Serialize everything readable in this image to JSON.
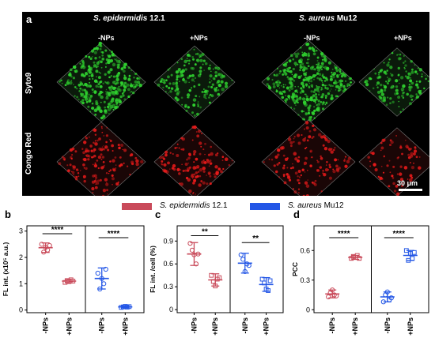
{
  "panel_a": {
    "label": "a",
    "species": [
      {
        "name_italic": "S. epidermidis",
        "strain": "12.1"
      },
      {
        "name_italic": "S. aureus",
        "strain": "Mu12"
      }
    ],
    "conditions": [
      "-NPs",
      "+NPs",
      "-NPs",
      "+NPs"
    ],
    "stains": [
      "Syto9",
      "Congo Red"
    ],
    "scale_bar": "30 μm",
    "colors": {
      "syto9": "#2fd12f",
      "congo": "#e61a1a"
    }
  },
  "legend": {
    "items": [
      {
        "name_italic": "S. epidermidis",
        "strain": "12.1",
        "color": "#c94a5a"
      },
      {
        "name_italic": "S. aureus",
        "strain": "Mu12",
        "color": "#2457e6"
      }
    ]
  },
  "chart_data": [
    {
      "panel": "b",
      "type": "scatter",
      "ylabel": "FL int. (x10⁵ a.u.)",
      "ylim": [
        -0.1,
        3.2
      ],
      "yticks": [
        "0",
        "1",
        "2",
        "3"
      ],
      "yticks_values": [
        0,
        1,
        2,
        3
      ],
      "categories": [
        "-NPs",
        "+NPs",
        "-NPs",
        "+NPs"
      ],
      "groups": [
        {
          "color": "#c94a5a",
          "marker": "circle",
          "mean": 2.37,
          "sd": 0.18,
          "points": [
            2.5,
            2.2,
            2.38,
            2.28,
            2.45
          ]
        },
        {
          "color": "#c94a5a",
          "marker": "square",
          "mean": 1.1,
          "sd": 0.07,
          "points": [
            1.05,
            1.12,
            1.08,
            1.15,
            1.1
          ]
        },
        {
          "color": "#2457e6",
          "marker": "circle",
          "mean": 1.2,
          "sd": 0.4,
          "points": [
            1.4,
            0.8,
            1.2,
            1.0,
            1.55
          ]
        },
        {
          "color": "#2457e6",
          "marker": "square",
          "mean": 0.12,
          "sd": 0.03,
          "points": [
            0.1,
            0.12,
            0.14,
            0.11,
            0.13
          ]
        }
      ],
      "significance": [
        {
          "between": [
            0,
            1
          ],
          "label": "****",
          "y": 2.9
        },
        {
          "between": [
            2,
            3
          ],
          "label": "****",
          "y": 2.75
        }
      ]
    },
    {
      "panel": "c",
      "type": "scatter",
      "ylabel": "FL int. /cell (%)",
      "ylim": [
        -0.04,
        1.1
      ],
      "yticks": [
        "0",
        "0.3",
        "0.6",
        "0.9"
      ],
      "yticks_values": [
        0,
        0.3,
        0.6,
        0.9
      ],
      "categories": [
        "-NPs",
        "+NPs",
        "-NPs",
        "+NPs"
      ],
      "groups": [
        {
          "color": "#c94a5a",
          "marker": "circle",
          "mean": 0.73,
          "sd": 0.15,
          "points": [
            0.87,
            0.78,
            0.72,
            0.6,
            0.73
          ]
        },
        {
          "color": "#c94a5a",
          "marker": "square",
          "mean": 0.39,
          "sd": 0.08,
          "points": [
            0.45,
            0.37,
            0.31,
            0.4,
            0.42
          ]
        },
        {
          "color": "#2457e6",
          "marker": "circle",
          "mean": 0.61,
          "sd": 0.13,
          "points": [
            0.72,
            0.66,
            0.5,
            0.6,
            0.58
          ]
        },
        {
          "color": "#2457e6",
          "marker": "square",
          "mean": 0.33,
          "sd": 0.09,
          "points": [
            0.4,
            0.35,
            0.27,
            0.25,
            0.38
          ]
        }
      ],
      "significance": [
        {
          "between": [
            0,
            1
          ],
          "label": "**",
          "y": 0.97
        },
        {
          "between": [
            2,
            3
          ],
          "label": "**",
          "y": 0.88
        }
      ]
    },
    {
      "panel": "d",
      "type": "scatter",
      "ylabel": "PCC",
      "ylim": [
        -0.03,
        0.85
      ],
      "yticks": [
        "0",
        "0.3",
        "0.6"
      ],
      "yticks_values": [
        0,
        0.3,
        0.6
      ],
      "categories": [
        "-NPs",
        "+NPs",
        "-NPs",
        "+NPs"
      ],
      "groups": [
        {
          "color": "#c94a5a",
          "marker": "circle",
          "mean": 0.16,
          "sd": 0.04,
          "points": [
            0.13,
            0.17,
            0.2,
            0.15,
            0.14
          ]
        },
        {
          "color": "#c94a5a",
          "marker": "square",
          "mean": 0.53,
          "sd": 0.02,
          "points": [
            0.52,
            0.54,
            0.53,
            0.55,
            0.52
          ]
        },
        {
          "color": "#2457e6",
          "marker": "circle",
          "mean": 0.13,
          "sd": 0.05,
          "points": [
            0.08,
            0.15,
            0.18,
            0.1,
            0.12
          ]
        },
        {
          "color": "#2457e6",
          "marker": "square",
          "mean": 0.55,
          "sd": 0.05,
          "points": [
            0.6,
            0.5,
            0.57,
            0.52,
            0.58
          ]
        }
      ],
      "significance": [
        {
          "between": [
            0,
            1
          ],
          "label": "****",
          "y": 0.73
        },
        {
          "between": [
            2,
            3
          ],
          "label": "****",
          "y": 0.73
        }
      ]
    }
  ]
}
